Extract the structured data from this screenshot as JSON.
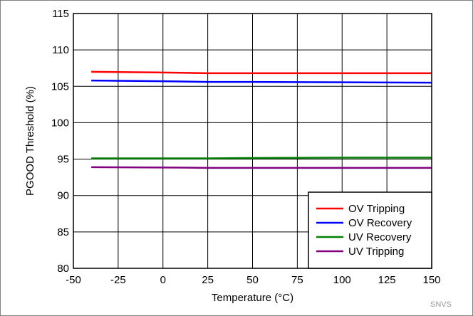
{
  "chart_data": {
    "type": "line",
    "xlabel": "Temperature (°C)",
    "ylabel": "PGOOD Threshold (%)",
    "xlim": [
      -50,
      150
    ],
    "ylim": [
      80,
      115
    ],
    "x_ticks": [
      -50,
      -25,
      0,
      25,
      50,
      75,
      100,
      125,
      150
    ],
    "y_ticks": [
      80,
      85,
      90,
      95,
      100,
      105,
      110,
      115
    ],
    "grid": true,
    "legend_position": "bottom-right",
    "series": [
      {
        "name": "OV Tripping",
        "color": "#ff0000",
        "x": [
          -40,
          0,
          25,
          50,
          100,
          150
        ],
        "y": [
          107.0,
          106.9,
          106.8,
          106.8,
          106.8,
          106.8
        ]
      },
      {
        "name": "OV Recovery",
        "color": "#0000ff",
        "x": [
          -40,
          0,
          25,
          50,
          100,
          150
        ],
        "y": [
          105.8,
          105.7,
          105.6,
          105.6,
          105.55,
          105.5
        ]
      },
      {
        "name": "UV Recovery",
        "color": "#008000",
        "x": [
          -40,
          0,
          25,
          50,
          100,
          150
        ],
        "y": [
          95.1,
          95.1,
          95.1,
          95.15,
          95.2,
          95.2
        ]
      },
      {
        "name": "UV Tripping",
        "color": "#800080",
        "x": [
          -40,
          0,
          25,
          50,
          100,
          150
        ],
        "y": [
          93.9,
          93.85,
          93.8,
          93.8,
          93.8,
          93.8
        ]
      }
    ]
  },
  "watermark": "SNVS"
}
